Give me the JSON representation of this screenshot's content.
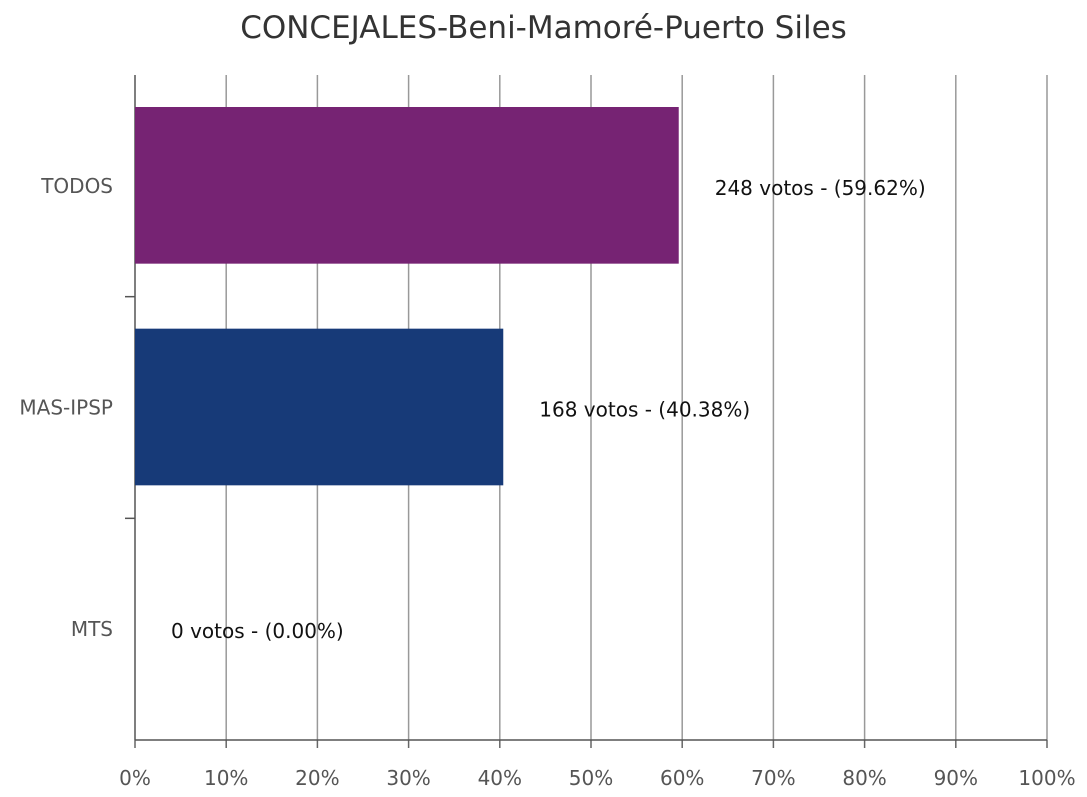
{
  "chart_data": {
    "type": "bar",
    "orientation": "horizontal",
    "title": "CONCEJALES-Beni-Mamoré-Puerto Siles",
    "categories": [
      "TODOS",
      "MAS-IPSP",
      "MTS"
    ],
    "values": [
      59.62,
      40.38,
      0.0
    ],
    "data_labels": [
      "248 votos - (59.62%)",
      "168 votos - (40.38%)",
      "0 votos - (0.00%)"
    ],
    "colors": [
      "#762373",
      "#173A78",
      "#cccccc"
    ],
    "xlim": [
      0,
      100
    ],
    "x_ticks": [
      "0%",
      "10%",
      "20%",
      "30%",
      "40%",
      "50%",
      "60%",
      "70%",
      "80%",
      "90%",
      "100%"
    ],
    "grid": true,
    "legend": "none"
  }
}
